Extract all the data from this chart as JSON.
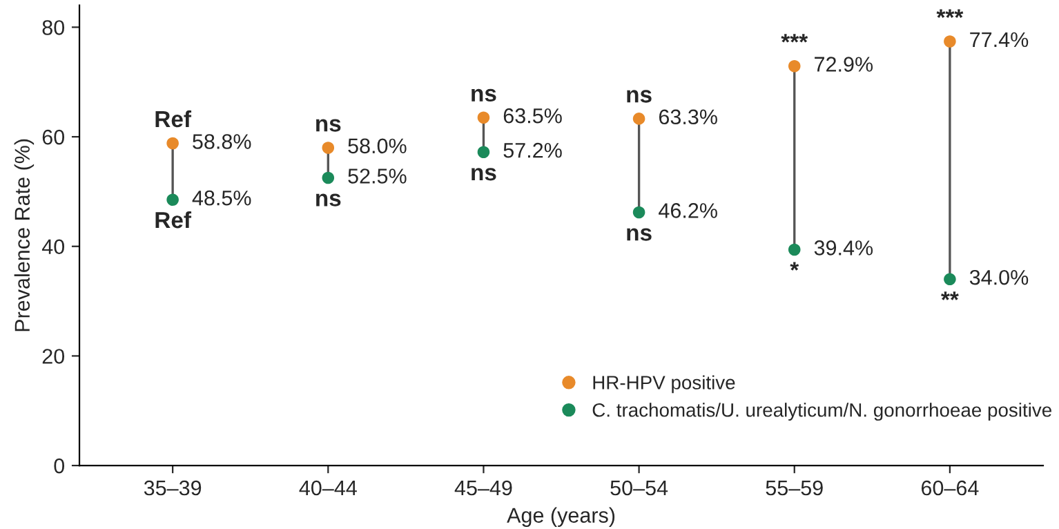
{
  "chart_data": {
    "type": "scatter",
    "xlabel": "Age (years)",
    "ylabel": "Prevalence Rate (%)",
    "categories": [
      "35–39",
      "40–44",
      "45–49",
      "50–54",
      "55–59",
      "60–64"
    ],
    "series": [
      {
        "name": "HR-HPV positive",
        "color": "#e88a2a",
        "values": [
          58.8,
          58.0,
          63.5,
          63.3,
          72.9,
          77.4
        ],
        "value_labels": [
          "58.8%",
          "58.0%",
          "63.5%",
          "63.3%",
          "72.9%",
          "77.4%"
        ]
      },
      {
        "name": "C. trachomatis/U. urealyticum/N. gonorrhoeae positive",
        "color": "#1b8a5a",
        "values": [
          48.5,
          52.5,
          57.2,
          46.2,
          39.4,
          34.0
        ],
        "value_labels": [
          "48.5%",
          "52.5%",
          "57.2%",
          "46.2%",
          "39.4%",
          "34.0%"
        ]
      }
    ],
    "annotations": [
      {
        "text": "Ref",
        "x": "35–39",
        "y": 58.8
      },
      {
        "text": "Ref",
        "x": "35–39",
        "y": 48.5
      },
      {
        "text": "ns",
        "x": "40–44",
        "y": 58.0
      },
      {
        "text": "ns",
        "x": "40–44",
        "y": 52.5
      },
      {
        "text": "ns",
        "x": "45–49",
        "y": 63.5
      },
      {
        "text": "ns",
        "x": "45–49",
        "y": 57.2
      },
      {
        "text": "ns",
        "x": "50–54",
        "y": 63.3
      },
      {
        "text": "ns",
        "x": "50–54",
        "y": 46.2
      },
      {
        "text": "***",
        "x": "55–59",
        "y": 72.9
      },
      {
        "text": "*",
        "x": "55–59",
        "y": 39.4
      },
      {
        "text": "***",
        "x": "60–64",
        "y": 77.4
      },
      {
        "text": "**",
        "x": "60–64",
        "y": 34.0
      }
    ],
    "ylim": [
      0,
      84
    ],
    "yticks": [
      0,
      20,
      40,
      60,
      80
    ],
    "grid": false,
    "legend": "bottom right",
    "marker": "circle"
  }
}
